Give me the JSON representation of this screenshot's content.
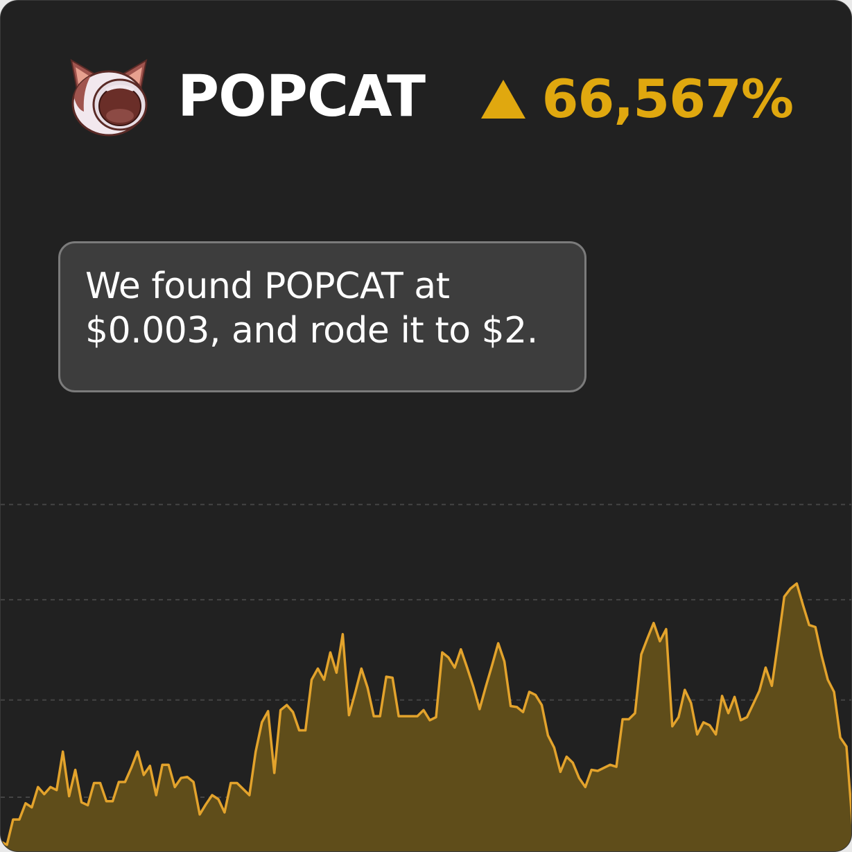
{
  "token": {
    "name": "POPCAT",
    "change": "66,567%",
    "change_direction": "up",
    "logo_icon": "popcat-icon"
  },
  "bubble": {
    "line1": "We found POPCAT at",
    "line2": "$0.003, and rode it to $2."
  },
  "colors": {
    "background": "#212121",
    "accent": "#e0a80f",
    "line": "#e3a32c",
    "fill": "#5f4d1a",
    "grid": "#444444",
    "text": "#ffffff",
    "bubble_bg": "#3d3d3d",
    "bubble_border": "#7b7b7b"
  },
  "chart_data": {
    "type": "area",
    "title": "",
    "xlabel": "",
    "ylabel": "",
    "grid": "horizontal dashed",
    "ylim": [
      0,
      460
    ],
    "x": [
      0,
      1,
      2,
      3,
      4,
      5,
      6,
      7,
      8,
      9,
      10,
      11,
      12,
      13,
      14,
      15,
      16,
      17,
      18,
      19,
      20,
      21,
      22,
      23,
      24,
      25,
      26,
      27,
      28,
      29,
      30,
      31,
      32,
      33,
      34,
      35,
      36,
      37,
      38,
      39,
      40,
      41,
      42,
      43,
      44,
      45,
      46,
      47,
      48,
      49,
      50,
      51,
      52,
      53,
      54,
      55,
      56,
      57,
      58,
      59,
      60,
      61,
      62,
      63,
      64,
      65,
      66,
      67,
      68,
      69,
      70,
      71,
      72,
      73,
      74,
      75,
      76,
      77,
      78,
      79,
      80,
      81,
      82,
      83,
      84,
      85,
      86,
      87,
      88,
      89,
      90,
      91,
      92,
      93,
      94,
      95,
      96,
      97,
      98,
      99,
      100,
      101,
      102,
      103,
      104,
      105,
      106,
      107,
      108,
      109,
      110,
      111,
      112,
      113,
      114,
      115,
      116,
      117,
      118,
      119,
      120,
      121,
      122,
      123,
      124,
      125,
      126,
      127,
      128,
      129,
      130,
      131,
      132,
      133,
      134,
      135,
      136,
      137
    ],
    "values": [
      6,
      3,
      28,
      28,
      44,
      40,
      60,
      53,
      60,
      57,
      95,
      51,
      77,
      45,
      42,
      64,
      64,
      46,
      46,
      65,
      65,
      79,
      95,
      72,
      81,
      52,
      82,
      82,
      60,
      69,
      70,
      65,
      33,
      43,
      52,
      48,
      35,
      64,
      64,
      58,
      52,
      95,
      124,
      135,
      74,
      136,
      141,
      134,
      116,
      116,
      166,
      177,
      166,
      193,
      173,
      211,
      131,
      153,
      177,
      158,
      130,
      130,
      169,
      168,
      130,
      130,
      130,
      130,
      136,
      126,
      129,
      193,
      188,
      178,
      196,
      178,
      159,
      137,
      159,
      180,
      202,
      184,
      140,
      139,
      134,
      154,
      151,
      141,
      111,
      99,
      75,
      90,
      84,
      69,
      60,
      77,
      76,
      79,
      82,
      80,
      127,
      127,
      133,
      191,
      207,
      222,
      204,
      216,
      120,
      129,
      156,
      143,
      112,
      124,
      121,
      112,
      150,
      133,
      149,
      126,
      129,
      142,
      155,
      178,
      160,
      203,
      248,
      256,
      261,
      240,
      220,
      218,
      190,
      166,
      154,
      109,
      100,
      20
    ]
  }
}
